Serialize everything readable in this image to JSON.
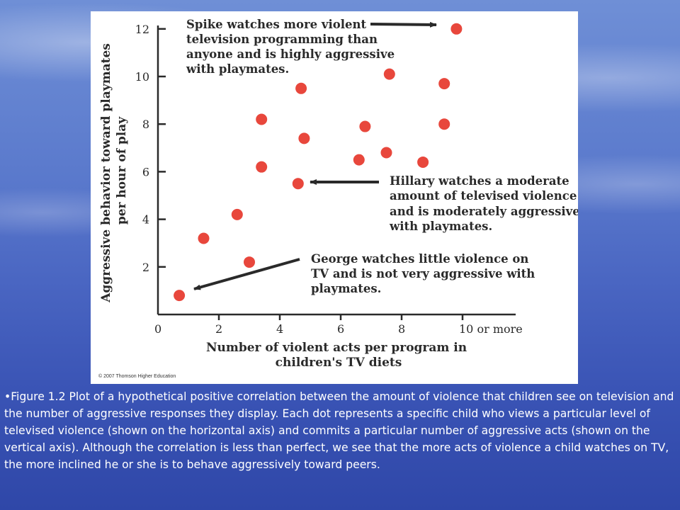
{
  "colors": {
    "point": "#e8473c",
    "axis": "#2a2a2a",
    "caption_text": "#ffffff"
  },
  "chart_data": {
    "type": "scatter",
    "xlabel": "Number of violent acts per program in children's TV diets",
    "ylabel": "Aggressive behavior toward playmates per hour of play",
    "xlim": [
      0,
      11.8
    ],
    "ylim": [
      0,
      12.8
    ],
    "x_ticks": [
      {
        "value": 0,
        "label": "0"
      },
      {
        "value": 2,
        "label": "2"
      },
      {
        "value": 4,
        "label": "4"
      },
      {
        "value": 6,
        "label": "6"
      },
      {
        "value": 8,
        "label": "8"
      },
      {
        "value": 10,
        "label": "10 or more"
      }
    ],
    "y_ticks": [
      {
        "value": 2,
        "label": "2"
      },
      {
        "value": 4,
        "label": "4"
      },
      {
        "value": 6,
        "label": "6"
      },
      {
        "value": 8,
        "label": "8"
      },
      {
        "value": 10,
        "label": "10"
      },
      {
        "value": 12,
        "label": "12"
      }
    ],
    "grid": false,
    "points": [
      {
        "x": 0.7,
        "y": 0.8
      },
      {
        "x": 1.5,
        "y": 3.2
      },
      {
        "x": 2.6,
        "y": 4.2
      },
      {
        "x": 3.0,
        "y": 2.2
      },
      {
        "x": 3.4,
        "y": 8.2
      },
      {
        "x": 3.4,
        "y": 6.2
      },
      {
        "x": 4.6,
        "y": 5.5
      },
      {
        "x": 4.7,
        "y": 9.5
      },
      {
        "x": 4.8,
        "y": 7.4
      },
      {
        "x": 6.6,
        "y": 6.5
      },
      {
        "x": 6.8,
        "y": 7.9
      },
      {
        "x": 7.5,
        "y": 6.8
      },
      {
        "x": 7.6,
        "y": 10.1
      },
      {
        "x": 8.7,
        "y": 6.4
      },
      {
        "x": 9.4,
        "y": 9.7
      },
      {
        "x": 9.4,
        "y": 8.0
      },
      {
        "x": 9.8,
        "y": 12.0
      }
    ],
    "annotations": [
      {
        "lines": [
          "Spike watches more violent",
          "television programming than",
          "anyone and is highly aggressive",
          "with playmates."
        ],
        "target": {
          "x": 9.8,
          "y": 12.0
        }
      },
      {
        "lines": [
          "Hillary watches a moderate",
          "amount of televised violence",
          "and is moderately aggressive",
          "with playmates."
        ],
        "target": {
          "x": 4.6,
          "y": 5.5
        }
      },
      {
        "lines": [
          "George watches little violence on",
          "TV and is not very aggressive with",
          "playmates."
        ],
        "target": {
          "x": 0.7,
          "y": 0.8
        }
      }
    ]
  },
  "axis_titles": {
    "x_line1": "Number of violent acts per program in",
    "x_line2": "children's TV diets",
    "y_line1": "Aggressive behavior toward playmates",
    "y_line2": "per hour of play"
  },
  "copyright": "© 2007 Thomson Higher Education",
  "caption": "•Figure 1.2 Plot of a hypothetical positive correlation between the amount of violence that children see on television and the number of aggressive responses they display. Each dot represents a specific child who views a particular level of televised violence (shown on the horizontal axis) and commits a particular number of aggressive acts (shown on the vertical axis). Although the correlation is less than perfect, we see that the more acts of violence a child watches on TV, the more inclined he or she is to behave aggressively toward peers."
}
